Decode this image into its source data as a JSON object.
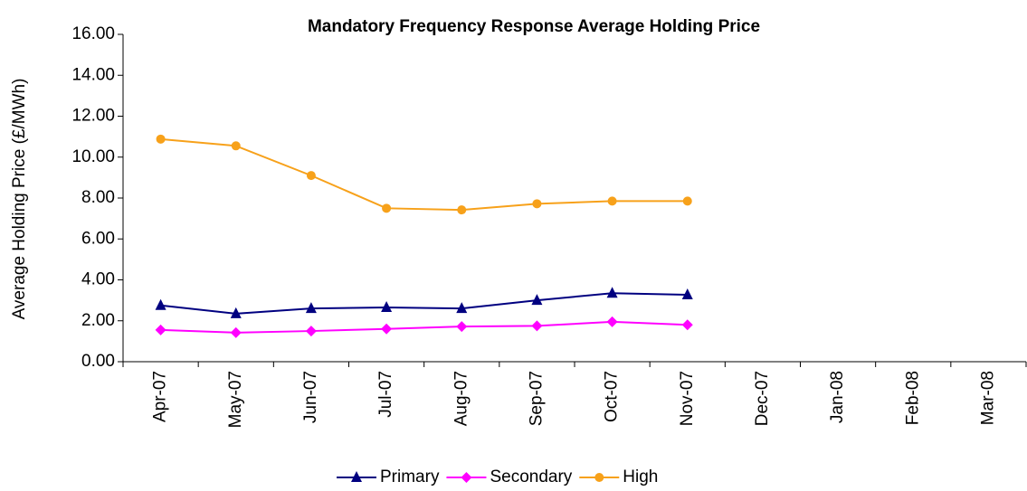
{
  "chart_data": {
    "type": "line",
    "title": "Mandatory Frequency Response Average Holding Price",
    "y_label": "Average Holding Price (£/MWh)",
    "categories": [
      "Apr-07",
      "May-07",
      "Jun-07",
      "Jul-07",
      "Aug-07",
      "Sep-07",
      "Oct-07",
      "Nov-07",
      "Dec-07",
      "Jan-08",
      "Feb-08",
      "Mar-08"
    ],
    "series": [
      {
        "name": "Primary",
        "color": "#000080",
        "marker": "triangle",
        "values": [
          2.75,
          2.35,
          2.6,
          2.65,
          2.6,
          3.0,
          3.35,
          3.27,
          null,
          null,
          null,
          null
        ]
      },
      {
        "name": "Secondary",
        "color": "#ff00ff",
        "marker": "diamond",
        "values": [
          1.55,
          1.42,
          1.5,
          1.6,
          1.72,
          1.75,
          1.95,
          1.8,
          null,
          null,
          null,
          null
        ]
      },
      {
        "name": "High",
        "color": "#f7a11a",
        "marker": "circle",
        "values": [
          10.88,
          10.55,
          9.1,
          7.5,
          7.42,
          7.72,
          7.85,
          7.85,
          null,
          null,
          null,
          null
        ]
      }
    ],
    "ylim": [
      0,
      16
    ],
    "yticks": [
      {
        "value": 0,
        "label": "0.00"
      },
      {
        "value": 2,
        "label": "2.00"
      },
      {
        "value": 4,
        "label": "4.00"
      },
      {
        "value": 6,
        "label": "6.00"
      },
      {
        "value": 8,
        "label": "8.00"
      },
      {
        "value": 10,
        "label": "10.00"
      },
      {
        "value": 12,
        "label": "12.00"
      },
      {
        "value": 14,
        "label": "14.00"
      },
      {
        "value": 16,
        "label": "16.00"
      }
    ],
    "grid": false,
    "legend": "bottom"
  }
}
